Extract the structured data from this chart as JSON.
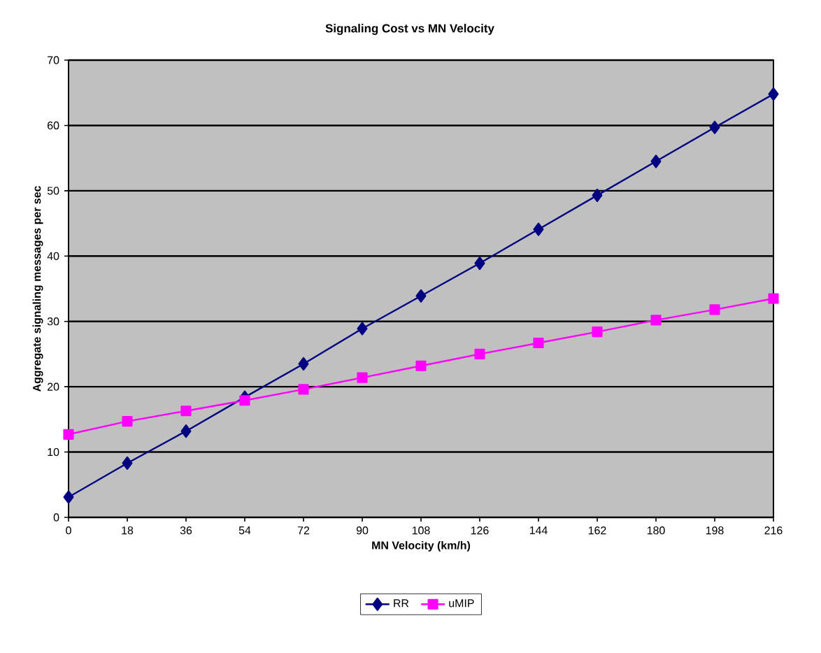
{
  "chart_data": {
    "type": "line",
    "title": "Signaling Cost vs MN Velocity",
    "xlabel": "MN Velocity (km/h)",
    "ylabel": "Aggregate signaling messages per sec",
    "x": [
      0,
      18,
      36,
      54,
      72,
      90,
      108,
      126,
      144,
      162,
      180,
      198,
      216
    ],
    "series": [
      {
        "name": "RR",
        "color": "#000080",
        "marker": "diamond",
        "values": [
          3.1,
          8.3,
          13.2,
          18.4,
          23.5,
          28.9,
          33.9,
          38.9,
          44.1,
          49.3,
          54.5,
          59.7,
          64.8
        ]
      },
      {
        "name": "uMIP",
        "color": "#ff00ff",
        "marker": "square",
        "values": [
          12.7,
          14.7,
          16.3,
          17.9,
          19.6,
          21.4,
          23.2,
          25.0,
          26.7,
          28.4,
          30.2,
          31.8,
          33.5
        ]
      }
    ],
    "xlim": [
      0,
      216
    ],
    "xticks": [
      0,
      18,
      36,
      54,
      72,
      90,
      108,
      126,
      144,
      162,
      180,
      198,
      216
    ],
    "ylim": [
      0,
      70
    ],
    "yticks": [
      0,
      10,
      20,
      30,
      40,
      50,
      60,
      70
    ],
    "grid": "y",
    "legend": "bottom",
    "line_style": "solid"
  }
}
